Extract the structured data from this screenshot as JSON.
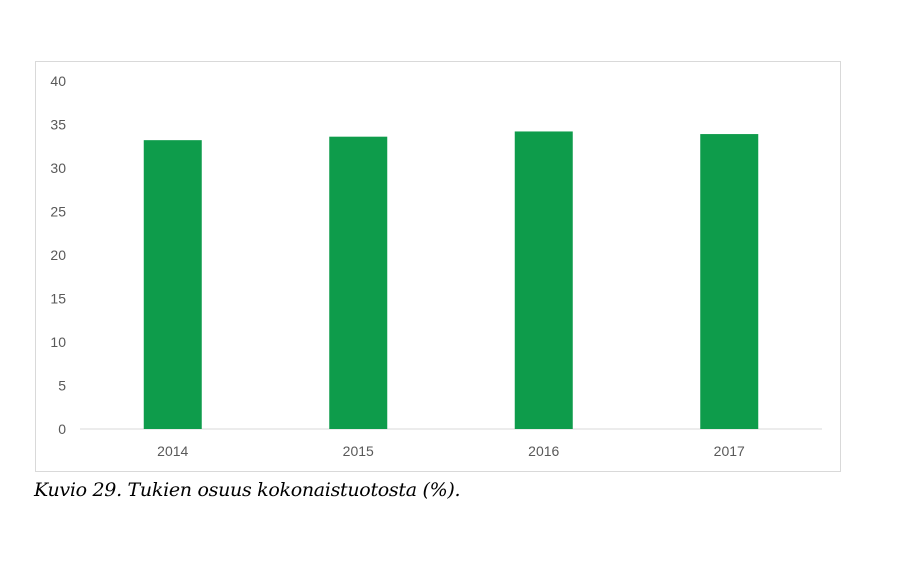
{
  "chart_data": {
    "type": "bar",
    "categories": [
      "2014",
      "2015",
      "2016",
      "2017"
    ],
    "values": [
      33.2,
      33.6,
      34.2,
      33.9
    ],
    "title": "",
    "xlabel": "",
    "ylabel": "",
    "ylim": [
      0,
      40
    ],
    "yticks": [
      0,
      5,
      10,
      15,
      20,
      25,
      30,
      35,
      40
    ],
    "grid": false,
    "legend": "none",
    "bar_color": "#0e9c4b"
  },
  "caption": "Kuvio 29. Tukien osuus kokonaistuotosta (%)."
}
